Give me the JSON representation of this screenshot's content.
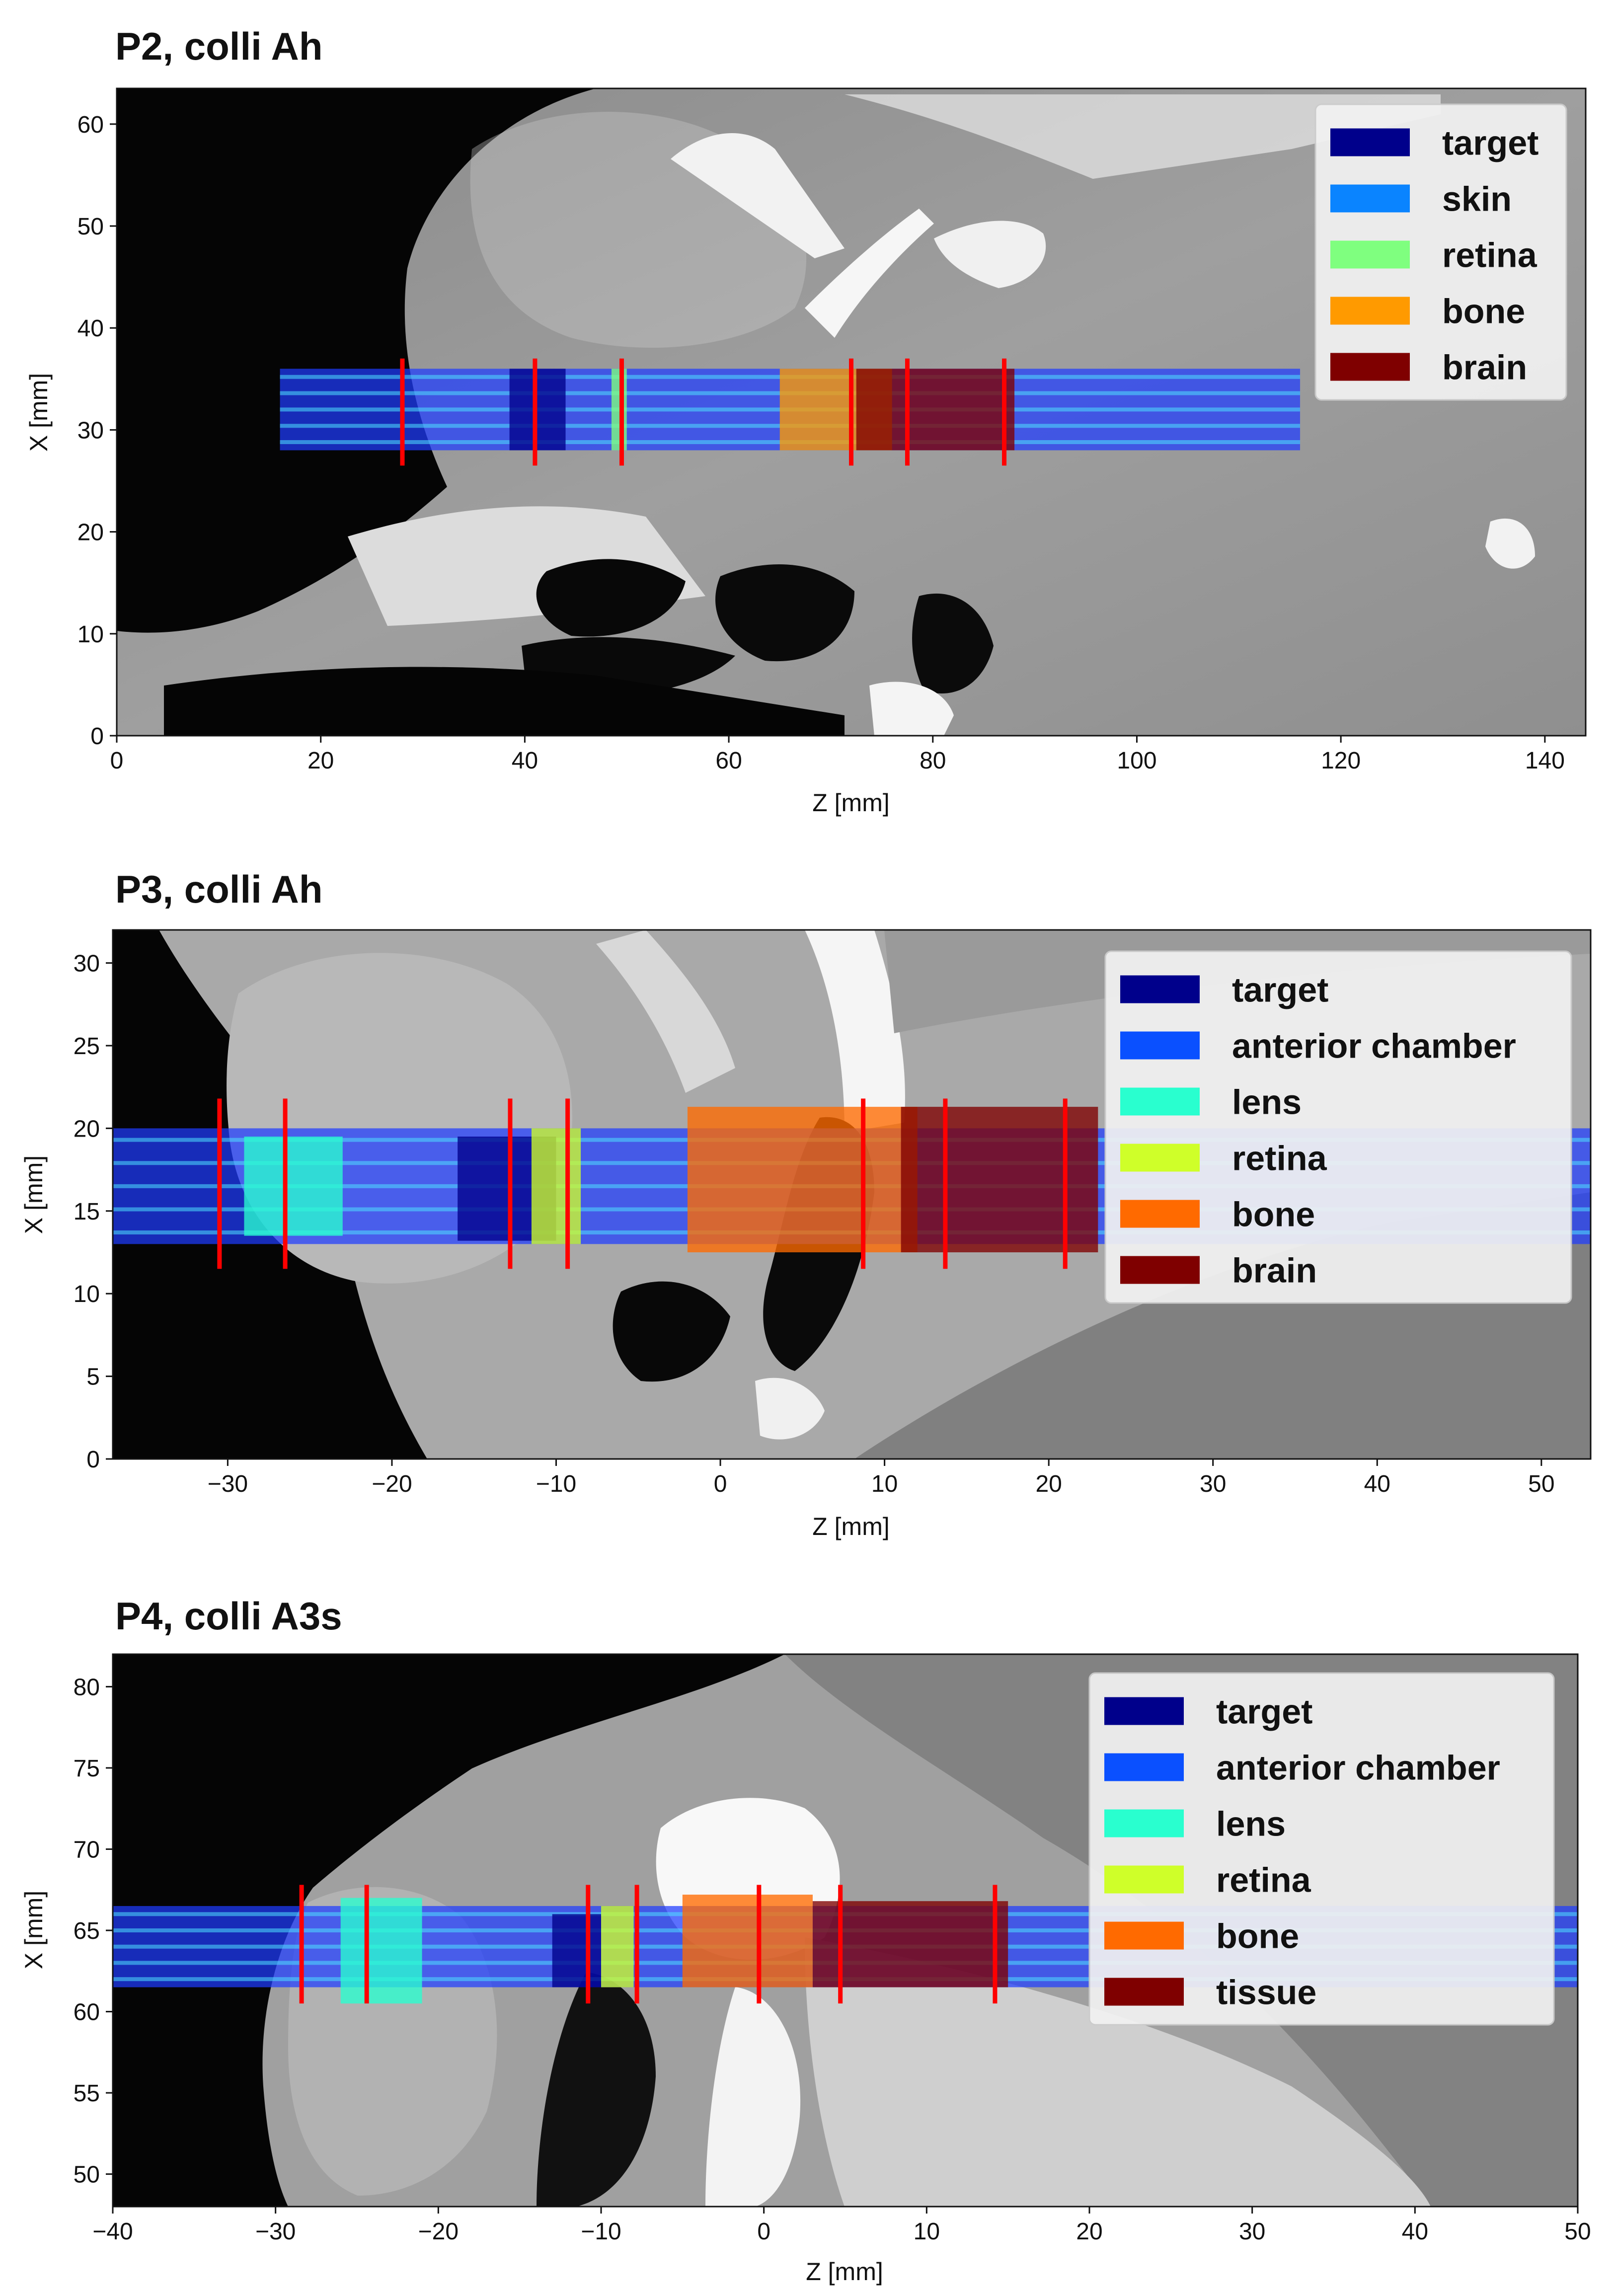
{
  "chart_data": [
    {
      "type": "heatmap",
      "title": "P2, colli Ah",
      "xlabel": "Z [mm]",
      "ylabel": "X [mm]",
      "xlim": [
        0,
        144
      ],
      "ylim": [
        0,
        63.5
      ],
      "xticks": [
        "0",
        "20",
        "40",
        "60",
        "80",
        "100",
        "120",
        "140"
      ],
      "yticks": [
        "0",
        "10",
        "20",
        "30",
        "40",
        "50",
        "60"
      ],
      "legend_position": "top-right",
      "legend": [
        {
          "label": "target",
          "color": "#00008b"
        },
        {
          "label": "skin",
          "color": "#0a84ff"
        },
        {
          "label": "retina",
          "color": "#7fff7f"
        },
        {
          "label": "bone",
          "color": "#ff9a00"
        },
        {
          "label": "brain",
          "color": "#7f0000"
        }
      ],
      "boundary_lines_z": [
        28,
        41,
        49.5,
        72,
        77.5,
        87
      ],
      "boundary_lines_x": [
        26.5,
        37
      ],
      "beam": {
        "z_start": 16,
        "z_end": 116,
        "x_min": 28,
        "x_max": 36
      },
      "regions": [
        {
          "label": "target",
          "z": [
            38.5,
            44
          ],
          "x": [
            28,
            36
          ]
        },
        {
          "label": "retina",
          "z": [
            48.5,
            50
          ],
          "x": [
            28,
            36
          ]
        },
        {
          "label": "bone",
          "z": [
            65,
            76
          ],
          "x": [
            28,
            36
          ]
        },
        {
          "label": "brain",
          "z": [
            72.5,
            88
          ],
          "x": [
            28,
            36
          ]
        }
      ]
    },
    {
      "type": "heatmap",
      "title": "P3, colli Ah",
      "xlabel": "Z [mm]",
      "ylabel": "X [mm]",
      "xlim": [
        -37,
        53
      ],
      "ylim": [
        0,
        32
      ],
      "xticks": [
        "−30",
        "−20",
        "−10",
        "0",
        "10",
        "20",
        "30",
        "40",
        "50"
      ],
      "yticks": [
        "0",
        "5",
        "10",
        "15",
        "20",
        "25",
        "30"
      ],
      "legend_position": "top-right",
      "legend": [
        {
          "label": "target",
          "color": "#00008b"
        },
        {
          "label": "anterior chamber",
          "color": "#0a50ff"
        },
        {
          "label": "lens",
          "color": "#29ffcf"
        },
        {
          "label": "retina",
          "color": "#cfff29"
        },
        {
          "label": "bone",
          "color": "#ff6a00"
        },
        {
          "label": "brain",
          "color": "#7f0000"
        }
      ],
      "boundary_lines_z": [
        -30.5,
        -26.5,
        -12.8,
        -9.3,
        8.7,
        13.7,
        21
      ],
      "boundary_lines_x": [
        11.5,
        21.8
      ],
      "beam": {
        "z_start": -37,
        "z_end": 53,
        "x_min": 13,
        "x_max": 20
      },
      "regions": [
        {
          "label": "lens",
          "z": [
            -29,
            -23
          ],
          "x": [
            13.5,
            19.5
          ]
        },
        {
          "label": "target",
          "z": [
            -16,
            -10
          ],
          "x": [
            13.2,
            19.5
          ]
        },
        {
          "label": "retina",
          "z": [
            -11.5,
            -8.5
          ],
          "x": [
            13,
            20
          ]
        },
        {
          "label": "bone",
          "z": [
            -2,
            12
          ],
          "x": [
            12.5,
            21.3
          ]
        },
        {
          "label": "brain",
          "z": [
            11,
            23
          ],
          "x": [
            12.5,
            21.3
          ]
        }
      ]
    },
    {
      "type": "heatmap",
      "title": "P4, colli A3s",
      "xlabel": "Z [mm]",
      "ylabel": "X [mm]",
      "xlim": [
        -40,
        50
      ],
      "ylim": [
        48,
        82
      ],
      "xticks": [
        "−40",
        "−30",
        "−20",
        "−10",
        "0",
        "10",
        "20",
        "30",
        "40",
        "50"
      ],
      "yticks": [
        "50",
        "55",
        "60",
        "65",
        "70",
        "75",
        "80"
      ],
      "legend_position": "top-right",
      "legend": [
        {
          "label": "target",
          "color": "#00008b"
        },
        {
          "label": "anterior chamber",
          "color": "#0a50ff"
        },
        {
          "label": "lens",
          "color": "#29ffcf"
        },
        {
          "label": "retina",
          "color": "#cfff29"
        },
        {
          "label": "bone",
          "color": "#ff6a00"
        },
        {
          "label": "tissue",
          "color": "#7f0000"
        }
      ],
      "boundary_lines_z": [
        -28.4,
        -24.4,
        -10.8,
        -7.8,
        -0.3,
        4.7,
        14.2
      ],
      "boundary_lines_x": [
        60.5,
        67.8
      ],
      "beam": {
        "z_start": -40,
        "z_end": 50,
        "x_min": 61.5,
        "x_max": 66.5
      },
      "regions": [
        {
          "label": "lens",
          "z": [
            -26,
            -21
          ],
          "x": [
            60.5,
            67
          ]
        },
        {
          "label": "target",
          "z": [
            -13,
            -10
          ],
          "x": [
            61.5,
            66
          ]
        },
        {
          "label": "retina",
          "z": [
            -10,
            -8
          ],
          "x": [
            61.5,
            66.5
          ]
        },
        {
          "label": "bone",
          "z": [
            -5,
            3
          ],
          "x": [
            61.5,
            67.2
          ]
        },
        {
          "label": "tissue",
          "z": [
            3,
            15
          ],
          "x": [
            61.5,
            66.8
          ]
        }
      ]
    }
  ]
}
